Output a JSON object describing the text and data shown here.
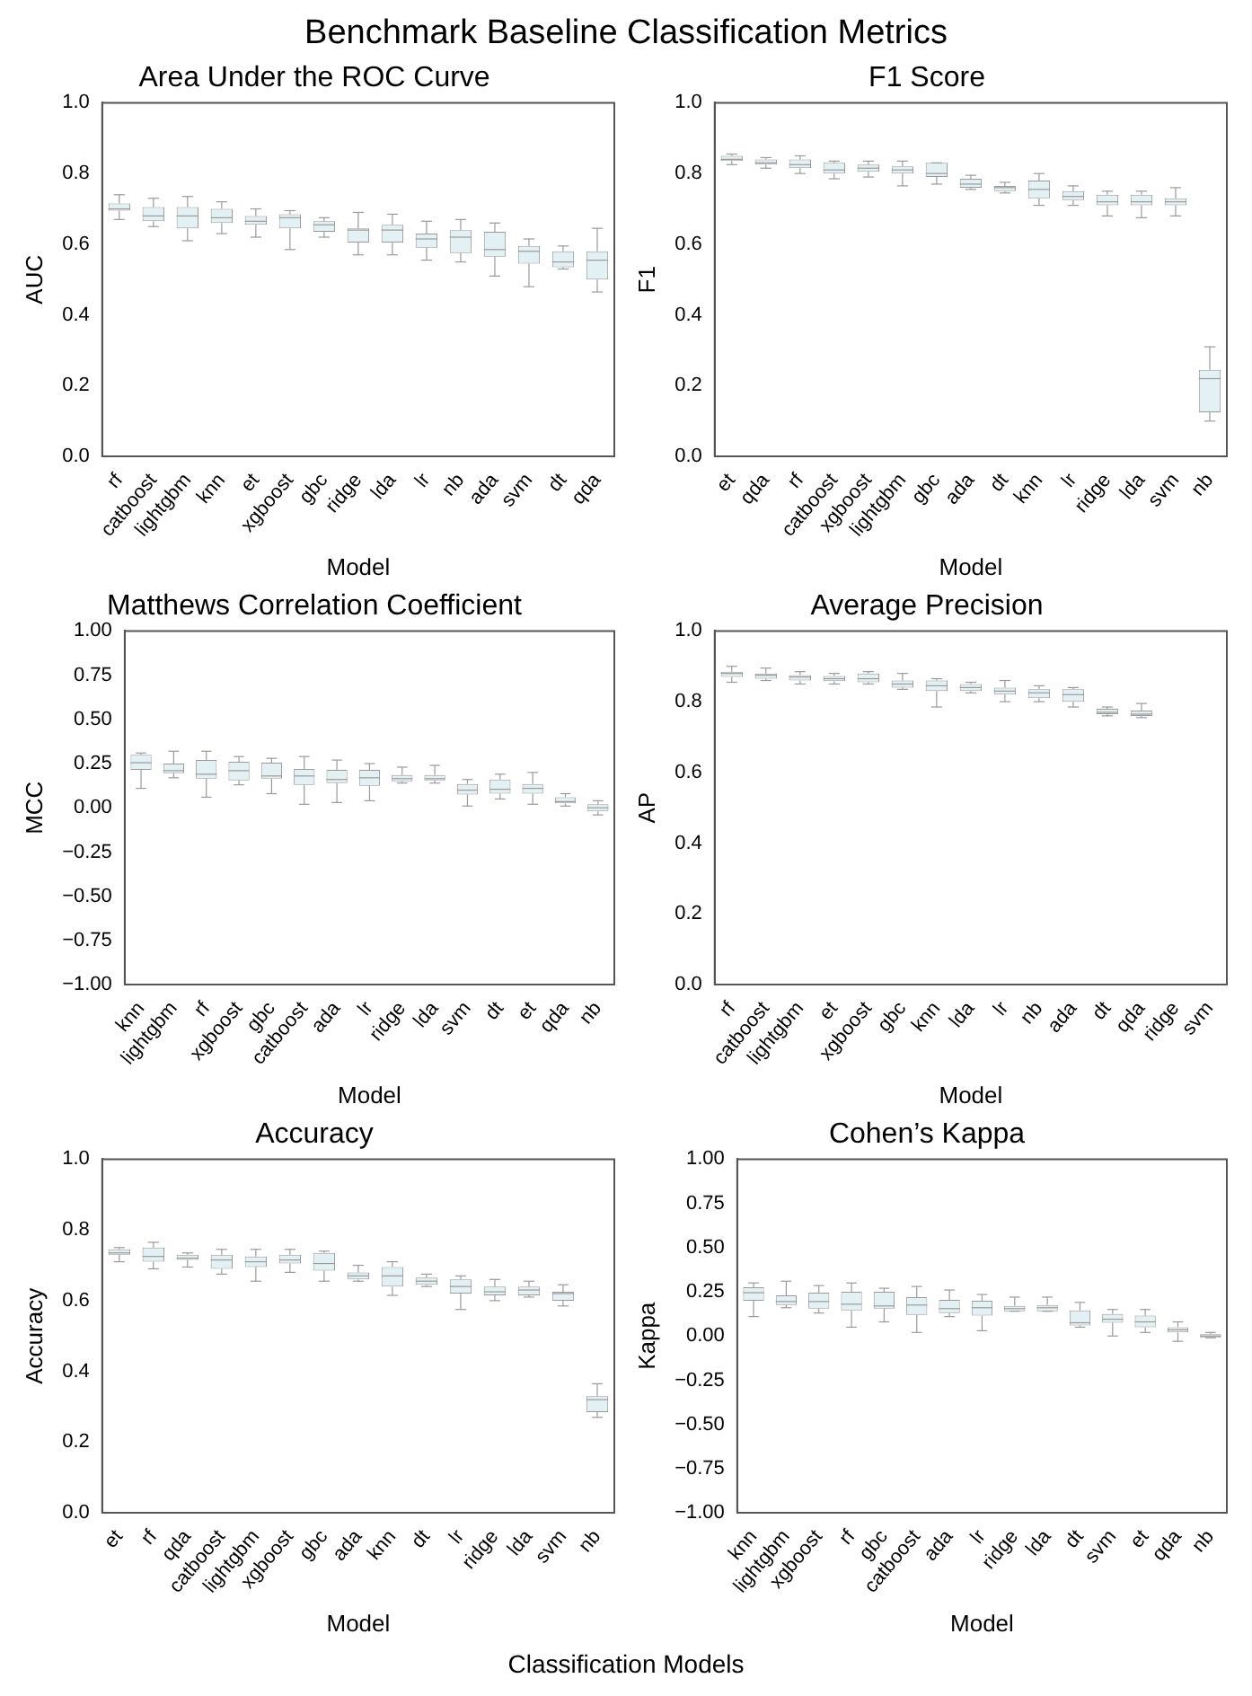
{
  "chart_data": [
    {
      "type": "other",
      "title": "Benchmark Baseline Classification Metrics",
      "annotations": [
        "Classification Models"
      ]
    },
    {
      "type": "box",
      "title": "Area Under the ROC Curve",
      "xlabel": "Model",
      "ylabel": "AUC",
      "categories": [
        "rf",
        "catboost",
        "lightgbm",
        "knn",
        "et",
        "xgboost",
        "gbc",
        "ridge",
        "lda",
        "lr",
        "nb",
        "ada",
        "svm",
        "dt",
        "qda"
      ],
      "ylim": [
        0,
        1
      ],
      "yticks": [
        {
          "value": 0,
          "label": "0.0"
        },
        {
          "value": 0.2,
          "label": "0.2"
        },
        {
          "value": 0.4,
          "label": "0.4"
        },
        {
          "value": 0.6,
          "label": "0.6"
        },
        {
          "value": 0.8,
          "label": "0.8"
        },
        {
          "value": 1,
          "label": "1.0"
        }
      ],
      "boxes": [
        {
          "low": 0.67,
          "q1": 0.695,
          "median": 0.7,
          "q3": 0.715,
          "high": 0.74
        },
        {
          "low": 0.65,
          "q1": 0.665,
          "median": 0.68,
          "q3": 0.705,
          "high": 0.73
        },
        {
          "low": 0.61,
          "q1": 0.645,
          "median": 0.68,
          "q3": 0.705,
          "high": 0.735
        },
        {
          "low": 0.63,
          "q1": 0.66,
          "median": 0.675,
          "q3": 0.7,
          "high": 0.72
        },
        {
          "low": 0.62,
          "q1": 0.655,
          "median": 0.665,
          "q3": 0.68,
          "high": 0.7
        },
        {
          "low": 0.585,
          "q1": 0.645,
          "median": 0.675,
          "q3": 0.685,
          "high": 0.695
        },
        {
          "low": 0.62,
          "q1": 0.635,
          "median": 0.655,
          "q3": 0.665,
          "high": 0.675
        },
        {
          "low": 0.57,
          "q1": 0.605,
          "median": 0.64,
          "q3": 0.645,
          "high": 0.69
        },
        {
          "low": 0.57,
          "q1": 0.605,
          "median": 0.64,
          "q3": 0.655,
          "high": 0.685
        },
        {
          "low": 0.555,
          "q1": 0.59,
          "median": 0.615,
          "q3": 0.63,
          "high": 0.665
        },
        {
          "low": 0.55,
          "q1": 0.575,
          "median": 0.62,
          "q3": 0.64,
          "high": 0.67
        },
        {
          "low": 0.51,
          "q1": 0.565,
          "median": 0.585,
          "q3": 0.635,
          "high": 0.66
        },
        {
          "low": 0.48,
          "q1": 0.545,
          "median": 0.58,
          "q3": 0.595,
          "high": 0.615
        },
        {
          "low": 0.53,
          "q1": 0.535,
          "median": 0.55,
          "q3": 0.58,
          "high": 0.595
        },
        {
          "low": 0.465,
          "q1": 0.5,
          "median": 0.555,
          "q3": 0.58,
          "high": 0.645
        }
      ]
    },
    {
      "type": "box",
      "title": "F1 Score",
      "xlabel": "Model",
      "ylabel": "F1",
      "categories": [
        "et",
        "qda",
        "rf",
        "catboost",
        "xgboost",
        "lightgbm",
        "gbc",
        "ada",
        "dt",
        "knn",
        "lr",
        "ridge",
        "lda",
        "svm",
        "nb"
      ],
      "ylim": [
        0,
        1
      ],
      "yticks": [
        {
          "value": 0,
          "label": "0.0"
        },
        {
          "value": 0.2,
          "label": "0.2"
        },
        {
          "value": 0.4,
          "label": "0.4"
        },
        {
          "value": 0.6,
          "label": "0.6"
        },
        {
          "value": 0.8,
          "label": "0.8"
        },
        {
          "value": 1,
          "label": "1.0"
        }
      ],
      "boxes": [
        {
          "low": 0.825,
          "q1": 0.835,
          "median": 0.84,
          "q3": 0.85,
          "high": 0.855
        },
        {
          "low": 0.815,
          "q1": 0.825,
          "median": 0.83,
          "q3": 0.84,
          "high": 0.845
        },
        {
          "low": 0.8,
          "q1": 0.815,
          "median": 0.825,
          "q3": 0.84,
          "high": 0.85
        },
        {
          "low": 0.785,
          "q1": 0.8,
          "median": 0.81,
          "q3": 0.83,
          "high": 0.835
        },
        {
          "low": 0.79,
          "q1": 0.805,
          "median": 0.815,
          "q3": 0.825,
          "high": 0.835
        },
        {
          "low": 0.765,
          "q1": 0.8,
          "median": 0.81,
          "q3": 0.82,
          "high": 0.835
        },
        {
          "low": 0.77,
          "q1": 0.79,
          "median": 0.8,
          "q3": 0.83,
          "high": 0.83
        },
        {
          "low": 0.755,
          "q1": 0.76,
          "median": 0.77,
          "q3": 0.785,
          "high": 0.795
        },
        {
          "low": 0.745,
          "q1": 0.75,
          "median": 0.76,
          "q3": 0.765,
          "high": 0.775
        },
        {
          "low": 0.71,
          "q1": 0.73,
          "median": 0.755,
          "q3": 0.78,
          "high": 0.8
        },
        {
          "low": 0.71,
          "q1": 0.725,
          "median": 0.735,
          "q3": 0.75,
          "high": 0.765
        },
        {
          "low": 0.68,
          "q1": 0.71,
          "median": 0.72,
          "q3": 0.74,
          "high": 0.75
        },
        {
          "low": 0.675,
          "q1": 0.71,
          "median": 0.72,
          "q3": 0.74,
          "high": 0.75
        },
        {
          "low": 0.68,
          "q1": 0.71,
          "median": 0.72,
          "q3": 0.73,
          "high": 0.76
        },
        {
          "low": 0.1,
          "q1": 0.125,
          "median": 0.22,
          "q3": 0.245,
          "high": 0.31
        }
      ]
    },
    {
      "type": "box",
      "title": "Matthews Correlation Coefficient",
      "xlabel": "Model",
      "ylabel": "MCC",
      "categories": [
        "knn",
        "lightgbm",
        "rf",
        "xgboost",
        "gbc",
        "catboost",
        "ada",
        "lr",
        "ridge",
        "lda",
        "svm",
        "dt",
        "et",
        "qda",
        "nb"
      ],
      "ylim": [
        -1,
        1
      ],
      "yticks": [
        {
          "value": -1,
          "label": "−1.00"
        },
        {
          "value": -0.75,
          "label": "−0.75"
        },
        {
          "value": -0.5,
          "label": "−0.50"
        },
        {
          "value": -0.25,
          "label": "−0.25"
        },
        {
          "value": 0,
          "label": "0.00"
        },
        {
          "value": 0.25,
          "label": "0.25"
        },
        {
          "value": 0.5,
          "label": "0.50"
        },
        {
          "value": 0.75,
          "label": "0.75"
        },
        {
          "value": 1,
          "label": "1.00"
        }
      ],
      "boxes": [
        {
          "low": 0.11,
          "q1": 0.215,
          "median": 0.255,
          "q3": 0.3,
          "high": 0.31
        },
        {
          "low": 0.17,
          "q1": 0.195,
          "median": 0.21,
          "q3": 0.25,
          "high": 0.32
        },
        {
          "low": 0.06,
          "q1": 0.165,
          "median": 0.19,
          "q3": 0.27,
          "high": 0.32
        },
        {
          "low": 0.13,
          "q1": 0.155,
          "median": 0.21,
          "q3": 0.26,
          "high": 0.29
        },
        {
          "low": 0.08,
          "q1": 0.165,
          "median": 0.18,
          "q3": 0.255,
          "high": 0.28
        },
        {
          "low": 0.02,
          "q1": 0.13,
          "median": 0.18,
          "q3": 0.22,
          "high": 0.29
        },
        {
          "low": 0.03,
          "q1": 0.14,
          "median": 0.16,
          "q3": 0.215,
          "high": 0.27
        },
        {
          "low": 0.04,
          "q1": 0.125,
          "median": 0.17,
          "q3": 0.215,
          "high": 0.25
        },
        {
          "low": 0.14,
          "q1": 0.15,
          "median": 0.165,
          "q3": 0.185,
          "high": 0.23
        },
        {
          "low": 0.14,
          "q1": 0.155,
          "median": 0.165,
          "q3": 0.185,
          "high": 0.24
        },
        {
          "low": 0.01,
          "q1": 0.075,
          "median": 0.1,
          "q3": 0.135,
          "high": 0.16
        },
        {
          "low": 0.05,
          "q1": 0.08,
          "median": 0.105,
          "q3": 0.16,
          "high": 0.19
        },
        {
          "low": 0.02,
          "q1": 0.08,
          "median": 0.11,
          "q3": 0.135,
          "high": 0.2
        },
        {
          "low": 0.01,
          "q1": 0.025,
          "median": 0.035,
          "q3": 0.06,
          "high": 0.08
        },
        {
          "low": -0.04,
          "q1": -0.02,
          "median": 0,
          "q3": 0.02,
          "high": 0.04
        }
      ]
    },
    {
      "type": "box",
      "title": "Average Precision",
      "xlabel": "Model",
      "ylabel": "AP",
      "categories": [
        "rf",
        "catboost",
        "lightgbm",
        "et",
        "xgboost",
        "gbc",
        "knn",
        "lda",
        "lr",
        "nb",
        "ada",
        "dt",
        "qda",
        "ridge",
        "svm"
      ],
      "ylim": [
        0,
        1
      ],
      "yticks": [
        {
          "value": 0,
          "label": "0.0"
        },
        {
          "value": 0.2,
          "label": "0.2"
        },
        {
          "value": 0.4,
          "label": "0.4"
        },
        {
          "value": 0.6,
          "label": "0.6"
        },
        {
          "value": 0.8,
          "label": "0.8"
        },
        {
          "value": 1,
          "label": "1.0"
        }
      ],
      "boxes": [
        {
          "low": 0.855,
          "q1": 0.87,
          "median": 0.88,
          "q3": 0.885,
          "high": 0.9
        },
        {
          "low": 0.86,
          "q1": 0.865,
          "median": 0.875,
          "q3": 0.88,
          "high": 0.895
        },
        {
          "low": 0.85,
          "q1": 0.86,
          "median": 0.87,
          "q3": 0.875,
          "high": 0.885
        },
        {
          "low": 0.85,
          "q1": 0.858,
          "median": 0.865,
          "q3": 0.873,
          "high": 0.88
        },
        {
          "low": 0.85,
          "q1": 0.855,
          "median": 0.865,
          "q3": 0.88,
          "high": 0.885
        },
        {
          "low": 0.835,
          "q1": 0.84,
          "median": 0.85,
          "q3": 0.86,
          "high": 0.88
        },
        {
          "low": 0.785,
          "q1": 0.83,
          "median": 0.845,
          "q3": 0.86,
          "high": 0.865
        },
        {
          "low": 0.825,
          "q1": 0.83,
          "median": 0.84,
          "q3": 0.85,
          "high": 0.855
        },
        {
          "low": 0.8,
          "q1": 0.82,
          "median": 0.83,
          "q3": 0.84,
          "high": 0.86
        },
        {
          "low": 0.8,
          "q1": 0.81,
          "median": 0.825,
          "q3": 0.835,
          "high": 0.845
        },
        {
          "low": 0.785,
          "q1": 0.8,
          "median": 0.82,
          "q3": 0.835,
          "high": 0.84
        },
        {
          "low": 0.76,
          "q1": 0.765,
          "median": 0.77,
          "q3": 0.78,
          "high": 0.785
        },
        {
          "low": 0.755,
          "q1": 0.76,
          "median": 0.765,
          "q3": 0.775,
          "high": 0.795
        },
        {
          "low": 0,
          "q1": 0,
          "median": 0,
          "q3": 0,
          "high": 0
        },
        {
          "low": 0,
          "q1": 0,
          "median": 0,
          "q3": 0,
          "high": 0
        }
      ]
    },
    {
      "type": "box",
      "title": "Accuracy",
      "xlabel": "Model",
      "ylabel": "Accuracy",
      "categories": [
        "et",
        "rf",
        "qda",
        "catboost",
        "lightgbm",
        "xgboost",
        "gbc",
        "ada",
        "knn",
        "dt",
        "lr",
        "ridge",
        "lda",
        "svm",
        "nb"
      ],
      "ylim": [
        0,
        1
      ],
      "yticks": [
        {
          "value": 0,
          "label": "0.0"
        },
        {
          "value": 0.2,
          "label": "0.2"
        },
        {
          "value": 0.4,
          "label": "0.4"
        },
        {
          "value": 0.6,
          "label": "0.6"
        },
        {
          "value": 0.8,
          "label": "0.8"
        },
        {
          "value": 1,
          "label": "1.0"
        }
      ],
      "boxes": [
        {
          "low": 0.71,
          "q1": 0.73,
          "median": 0.735,
          "q3": 0.745,
          "high": 0.75
        },
        {
          "low": 0.69,
          "q1": 0.71,
          "median": 0.725,
          "q3": 0.75,
          "high": 0.765
        },
        {
          "low": 0.695,
          "q1": 0.715,
          "median": 0.72,
          "q3": 0.73,
          "high": 0.735
        },
        {
          "low": 0.675,
          "q1": 0.69,
          "median": 0.715,
          "q3": 0.73,
          "high": 0.745
        },
        {
          "low": 0.655,
          "q1": 0.695,
          "median": 0.71,
          "q3": 0.725,
          "high": 0.745
        },
        {
          "low": 0.68,
          "q1": 0.705,
          "median": 0.715,
          "q3": 0.73,
          "high": 0.745
        },
        {
          "low": 0.655,
          "q1": 0.685,
          "median": 0.705,
          "q3": 0.735,
          "high": 0.74
        },
        {
          "low": 0.655,
          "q1": 0.66,
          "median": 0.67,
          "q3": 0.68,
          "high": 0.7
        },
        {
          "low": 0.615,
          "q1": 0.64,
          "median": 0.67,
          "q3": 0.695,
          "high": 0.71
        },
        {
          "low": 0.64,
          "q1": 0.645,
          "median": 0.655,
          "q3": 0.665,
          "high": 0.675
        },
        {
          "low": 0.575,
          "q1": 0.62,
          "median": 0.64,
          "q3": 0.66,
          "high": 0.67
        },
        {
          "low": 0.6,
          "q1": 0.615,
          "median": 0.625,
          "q3": 0.64,
          "high": 0.66
        },
        {
          "low": 0.61,
          "q1": 0.615,
          "median": 0.63,
          "q3": 0.64,
          "high": 0.655
        },
        {
          "low": 0.585,
          "q1": 0.6,
          "median": 0.62,
          "q3": 0.625,
          "high": 0.645
        },
        {
          "low": 0.27,
          "q1": 0.285,
          "median": 0.32,
          "q3": 0.33,
          "high": 0.365
        }
      ]
    },
    {
      "type": "box",
      "title": "Cohen’s Kappa",
      "xlabel": "Model",
      "ylabel": "Kappa",
      "categories": [
        "knn",
        "lightgbm",
        "xgboost",
        "rf",
        "gbc",
        "catboost",
        "ada",
        "lr",
        "ridge",
        "lda",
        "dt",
        "svm",
        "et",
        "qda",
        "nb"
      ],
      "ylim": [
        -1,
        1
      ],
      "yticks": [
        {
          "value": -1,
          "label": "−1.00"
        },
        {
          "value": -0.75,
          "label": "−0.75"
        },
        {
          "value": -0.5,
          "label": "−0.50"
        },
        {
          "value": -0.25,
          "label": "−0.25"
        },
        {
          "value": 0,
          "label": "0.00"
        },
        {
          "value": 0.25,
          "label": "0.25"
        },
        {
          "value": 0.5,
          "label": "0.50"
        },
        {
          "value": 0.75,
          "label": "0.75"
        },
        {
          "value": 1,
          "label": "1.00"
        }
      ],
      "boxes": [
        {
          "low": 0.11,
          "q1": 0.2,
          "median": 0.245,
          "q3": 0.275,
          "high": 0.3
        },
        {
          "low": 0.16,
          "q1": 0.175,
          "median": 0.195,
          "q3": 0.23,
          "high": 0.31
        },
        {
          "low": 0.13,
          "q1": 0.155,
          "median": 0.195,
          "q3": 0.245,
          "high": 0.285
        },
        {
          "low": 0.05,
          "q1": 0.145,
          "median": 0.18,
          "q3": 0.25,
          "high": 0.3
        },
        {
          "low": 0.08,
          "q1": 0.155,
          "median": 0.17,
          "q3": 0.25,
          "high": 0.27
        },
        {
          "low": 0.02,
          "q1": 0.12,
          "median": 0.175,
          "q3": 0.22,
          "high": 0.28
        },
        {
          "low": 0.11,
          "q1": 0.13,
          "median": 0.155,
          "q3": 0.205,
          "high": 0.26
        },
        {
          "low": 0.03,
          "q1": 0.115,
          "median": 0.16,
          "q3": 0.2,
          "high": 0.235
        },
        {
          "low": 0.14,
          "q1": 0.14,
          "median": 0.155,
          "q3": 0.17,
          "high": 0.22
        },
        {
          "low": 0.14,
          "q1": 0.14,
          "median": 0.16,
          "q3": 0.175,
          "high": 0.22
        },
        {
          "low": 0.05,
          "q1": 0.06,
          "median": 0.075,
          "q3": 0.145,
          "high": 0.19
        },
        {
          "low": 0,
          "q1": 0.075,
          "median": 0.095,
          "q3": 0.125,
          "high": 0.15
        },
        {
          "low": 0.02,
          "q1": 0.05,
          "median": 0.08,
          "q3": 0.115,
          "high": 0.15
        },
        {
          "low": -0.03,
          "q1": 0.02,
          "median": 0.035,
          "q3": 0.05,
          "high": 0.08
        },
        {
          "low": -0.01,
          "q1": -0.01,
          "median": 0,
          "q3": 0.01,
          "high": 0.02
        }
      ]
    }
  ]
}
